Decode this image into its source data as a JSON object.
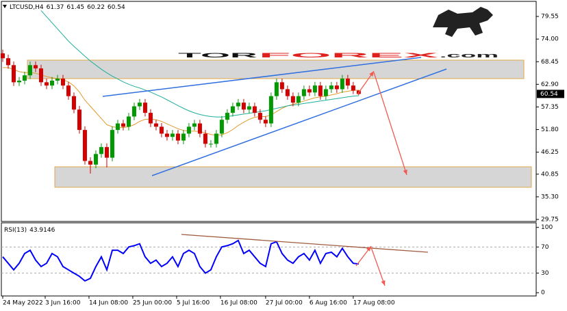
{
  "logo": {
    "left": "TOR",
    "right": "FOREX",
    "suffix": ".com"
  },
  "chart_data": [
    {
      "type": "candlestick",
      "symbol": "LTCUSD,H4",
      "up_color": "#009a00",
      "down_color": "#d40000",
      "open": [
        70.5,
        69.3,
        67.6,
        63.4,
        63.8,
        65.1,
        67.6,
        66.8,
        63.4,
        62.6,
        63.8,
        64.3,
        62.6,
        60.0,
        56.7,
        51.7,
        44.1,
        43.2,
        45.8,
        47.5,
        44.9,
        51.7,
        53.3,
        52.5,
        55.0,
        57.5,
        58.4,
        55.9,
        53.3,
        52.5,
        50.8,
        50.0,
        50.8,
        49.1,
        50.8,
        52.5,
        53.3,
        50.8,
        48.3,
        48.3,
        50.8,
        54.2,
        55.9,
        57.5,
        58.4,
        56.7,
        57.5,
        55.9,
        54.2,
        53.3,
        60.0,
        63.4,
        61.7,
        60.0,
        58.4,
        60.0,
        61.7,
        60.9,
        62.6,
        60.0,
        61.7,
        62.6,
        61.7,
        64.3,
        62.6,
        61.37
      ],
      "high": [
        71.4,
        70.2,
        68.5,
        64.7,
        66.0,
        68.5,
        68.5,
        67.7,
        64.3,
        64.7,
        65.2,
        65.2,
        63.5,
        60.9,
        57.6,
        52.6,
        45.0,
        46.7,
        48.4,
        48.4,
        52.6,
        54.2,
        54.2,
        55.9,
        58.4,
        59.3,
        59.3,
        56.8,
        54.2,
        53.4,
        51.7,
        51.7,
        51.7,
        51.7,
        53.4,
        54.2,
        54.2,
        51.7,
        49.2,
        51.7,
        55.1,
        56.8,
        58.4,
        59.3,
        59.3,
        58.4,
        58.4,
        56.8,
        55.1,
        60.9,
        64.3,
        64.3,
        62.6,
        60.9,
        60.9,
        62.6,
        62.6,
        63.5,
        63.5,
        62.6,
        63.5,
        63.5,
        65.2,
        65.2,
        63.5,
        61.45
      ],
      "low": [
        68.4,
        66.7,
        62.5,
        62.5,
        62.9,
        64.2,
        65.9,
        62.5,
        61.7,
        61.7,
        62.9,
        61.7,
        59.1,
        55.8,
        50.8,
        43.2,
        41.0,
        42.3,
        44.9,
        42.5,
        44.0,
        50.8,
        51.6,
        51.6,
        54.1,
        56.6,
        55.0,
        52.4,
        51.6,
        49.9,
        49.1,
        49.1,
        48.2,
        48.2,
        49.9,
        51.6,
        49.9,
        47.4,
        47.4,
        47.4,
        49.9,
        53.3,
        55.0,
        56.6,
        55.8,
        55.8,
        55.0,
        53.3,
        52.4,
        52.4,
        59.1,
        60.8,
        59.1,
        57.5,
        57.5,
        59.1,
        60.0,
        60.0,
        59.1,
        59.1,
        60.8,
        60.8,
        60.8,
        61.7,
        60.5,
        60.22
      ],
      "close": [
        69.3,
        67.6,
        63.4,
        63.8,
        65.1,
        67.6,
        66.8,
        63.4,
        62.6,
        63.8,
        64.3,
        62.6,
        60.0,
        56.7,
        51.7,
        44.1,
        43.2,
        45.8,
        47.5,
        44.9,
        51.7,
        53.3,
        52.5,
        55.0,
        57.5,
        58.4,
        55.9,
        53.3,
        52.5,
        50.8,
        50.0,
        50.8,
        49.1,
        50.8,
        52.5,
        53.3,
        50.8,
        48.3,
        48.3,
        50.8,
        54.2,
        55.9,
        57.5,
        58.4,
        56.7,
        57.5,
        55.9,
        54.2,
        53.3,
        60.0,
        63.4,
        61.7,
        60.0,
        58.4,
        60.0,
        61.7,
        60.9,
        62.6,
        60.0,
        61.7,
        62.6,
        61.7,
        64.3,
        62.6,
        61.37,
        60.54
      ],
      "lines": [
        {
          "color": "#e39a2d",
          "values": [
            67,
            67,
            66.5,
            66,
            65.8,
            65.8,
            65.6,
            65.2,
            64.8,
            64.5,
            64.3,
            64,
            63.5,
            62.5,
            61,
            59,
            57.5,
            56,
            54.5,
            53,
            52.5,
            52.3,
            52.3,
            52.5,
            53,
            53.8,
            54.3,
            54.4,
            54.2,
            53.8,
            53.2,
            52.6,
            52,
            51.6,
            51.4,
            51.4,
            51.3,
            51,
            50.6,
            50.4,
            50.5,
            51,
            51.8,
            52.8,
            53.6,
            54.3,
            54.8,
            55,
            55,
            55.4,
            56.2,
            57,
            57.6,
            58,
            58.4,
            58.8,
            59.2,
            59.6,
            59.8,
            60,
            60.3,
            60.6,
            61,
            61.2,
            61.4,
            61.5
          ]
        },
        {
          "color": "#1fae9b",
          "values": [
            null,
            null,
            null,
            null,
            null,
            null,
            null,
            81,
            79.5,
            78,
            76.5,
            75,
            73.5,
            72.2,
            71,
            69.8,
            68.6,
            67.6,
            66.6,
            65.7,
            64.9,
            64.2,
            63.5,
            62.9,
            62.4,
            62,
            61.5,
            61,
            60.4,
            59.8,
            59.1,
            58.4,
            57.7,
            57,
            56.4,
            55.9,
            55.5,
            55.2,
            55,
            54.9,
            54.9,
            55,
            55.2,
            55.4,
            55.6,
            55.8,
            56,
            56.2,
            56.4,
            56.7,
            57,
            57.3,
            57.6,
            57.8,
            58,
            58.2,
            58.4,
            58.6,
            58.8,
            59,
            59.2,
            59.4,
            59.6,
            59.8,
            60,
            60.1
          ]
        }
      ],
      "xlim": [
        -0.25,
        97.4
      ],
      "xticks": [
        {
          "value": 0,
          "label": "24 May 2022"
        },
        {
          "value": 7.75,
          "label": "3 Jun 16:00"
        },
        {
          "value": 15.75,
          "label": "14 Jun 08:00"
        },
        {
          "value": 23.75,
          "label": "25 Jun 00:00"
        },
        {
          "value": 31.75,
          "label": "5 Jul 16:00"
        },
        {
          "value": 39.75,
          "label": "16 Jul 08:00"
        },
        {
          "value": 48,
          "label": "27 Jul 00:00"
        },
        {
          "value": 56,
          "label": "6 Aug 16:00"
        },
        {
          "value": 64,
          "label": "17 Aug 08:00"
        }
      ],
      "ylim": [
        29.25,
        83.25
      ],
      "yticks": [
        79.55,
        {
          "value": 74,
          "label": "74.00"
        },
        68.45,
        {
          "value": 62.9,
          "label": "62.90"
        },
        57.35,
        {
          "value": 51.8,
          "label": "51.80"
        },
        46.25,
        40.85,
        {
          "value": 35.3,
          "label": "35.30"
        },
        29.75
      ]
    },
    {
      "type": "line",
      "name": "RSI(13)",
      "color": "#0000ff",
      "values": [
        55,
        45,
        35,
        45,
        60,
        65,
        50,
        40,
        45,
        60,
        55,
        40,
        35,
        30,
        25,
        18,
        22,
        40,
        55,
        35,
        65,
        65,
        60,
        70,
        72,
        75,
        55,
        45,
        50,
        40,
        45,
        55,
        40,
        60,
        65,
        60,
        40,
        30,
        35,
        55,
        70,
        72,
        75,
        80,
        60,
        65,
        55,
        45,
        40,
        75,
        78,
        60,
        50,
        45,
        55,
        60,
        50,
        65,
        45,
        60,
        62,
        55,
        68,
        55,
        45,
        43.9146
      ],
      "ylim": [
        -5,
        107
      ],
      "yticks": [
        100,
        70,
        30,
        0
      ],
      "levels": [
        70,
        30
      ]
    }
  ]
}
